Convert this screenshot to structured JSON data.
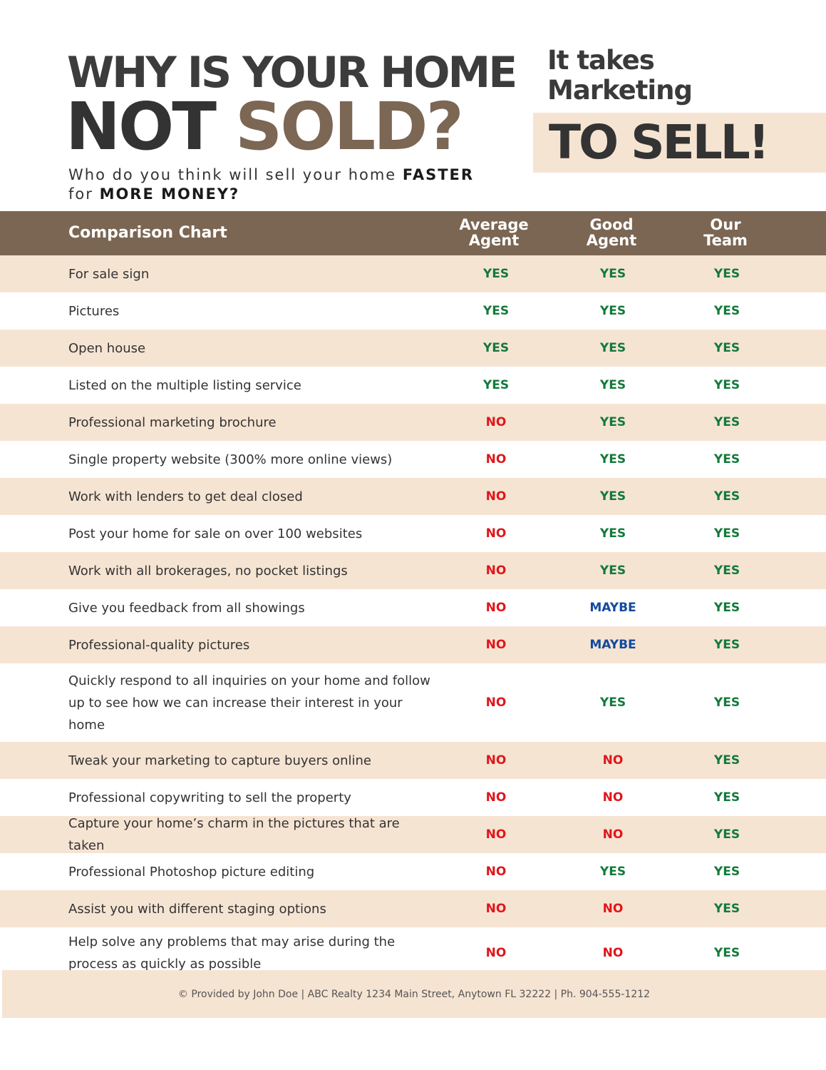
{
  "header": {
    "title_line1": "WHY IS YOUR HOME",
    "title_not": "NOT",
    "title_sold": "SOLD?",
    "subtitle_part1": "Who do you think will sell your home ",
    "subtitle_bold1": "FASTER",
    "subtitle_part2": "for ",
    "subtitle_bold2": "MORE MONEY?"
  },
  "tagline": {
    "line1": "It takes",
    "line2": "Marketing",
    "big": "TO SELL!"
  },
  "table": {
    "title": "Comparison Chart",
    "columns": [
      "Average\nAgent",
      "Good\nAgent",
      "Our\nTeam"
    ],
    "rows": [
      {
        "feature": "For sale sign",
        "values": [
          "YES",
          "YES",
          "YES"
        ]
      },
      {
        "feature": "Pictures",
        "values": [
          "YES",
          "YES",
          "YES"
        ]
      },
      {
        "feature": "Open house",
        "values": [
          "YES",
          "YES",
          "YES"
        ]
      },
      {
        "feature": "Listed on the multiple listing service",
        "values": [
          "YES",
          "YES",
          "YES"
        ]
      },
      {
        "feature": "Professional marketing brochure",
        "values": [
          "NO",
          "YES",
          "YES"
        ]
      },
      {
        "feature": "Single property website (300% more online views)",
        "values": [
          "NO",
          "YES",
          "YES"
        ]
      },
      {
        "feature": "Work with lenders to get deal closed",
        "values": [
          "NO",
          "YES",
          "YES"
        ]
      },
      {
        "feature": "Post your home for sale on over 100 websites",
        "values": [
          "NO",
          "YES",
          "YES"
        ]
      },
      {
        "feature": "Work with all brokerages, no pocket listings",
        "values": [
          "NO",
          "YES",
          "YES"
        ]
      },
      {
        "feature": "Give you feedback from all showings",
        "values": [
          "NO",
          "MAYBE",
          "YES"
        ]
      },
      {
        "feature": "Professional-quality pictures",
        "values": [
          "NO",
          "MAYBE",
          "YES"
        ]
      },
      {
        "feature": "Quickly respond to all inquiries on your home and follow up to see how we can increase their interest in your home",
        "values": [
          "NO",
          "YES",
          "YES"
        ]
      },
      {
        "feature": "Tweak your marketing to capture buyers online",
        "values": [
          "NO",
          "NO",
          "YES"
        ]
      },
      {
        "feature": "Professional copywriting to sell the property",
        "values": [
          "NO",
          "NO",
          "YES"
        ]
      },
      {
        "feature": "Capture your home’s charm in the pictures that are taken",
        "values": [
          "NO",
          "NO",
          "YES"
        ]
      },
      {
        "feature": "Professional Photoshop picture editing",
        "values": [
          "NO",
          "YES",
          "YES"
        ]
      },
      {
        "feature": "Assist you with different staging options",
        "values": [
          "NO",
          "NO",
          "YES"
        ]
      },
      {
        "feature": "Help solve any problems that may arise during the process as quickly as possible",
        "values": [
          "NO",
          "NO",
          "YES"
        ]
      }
    ]
  },
  "footer": {
    "text": "© Provided by John Doe | ABC Realty 1234 Main Street, Anytown FL 32222 | Ph. 904-555-1212"
  },
  "colors": {
    "brown": "#7b6653",
    "beige": "#f6e4d3",
    "yes": "#127a3a",
    "no": "#e0161b",
    "maybe": "#124a9c"
  }
}
